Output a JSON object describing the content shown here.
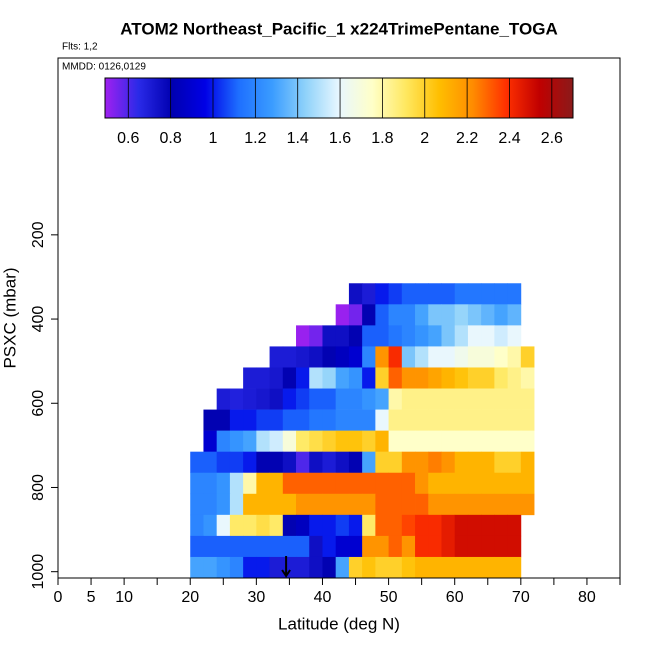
{
  "chart_data": {
    "type": "heatmap",
    "title": "ATOM2 Northeast_Pacific_1 x224TrimePentane_TOGA",
    "subtitle": "Flts: 1,2",
    "annotation": "MMDD: 0126,0129",
    "xlabel": "Latitude (deg N)",
    "ylabel": "PSXC (mbar)",
    "xlim": [
      0,
      85
    ],
    "xticks": [
      0,
      5,
      10,
      20,
      30,
      40,
      50,
      60,
      70,
      80
    ],
    "xminor_ticks": [
      15,
      25,
      35,
      45,
      55,
      65,
      75,
      85
    ],
    "ylim": [
      -220,
      1015
    ],
    "yticks": [
      200,
      400,
      600,
      800,
      1000
    ],
    "clim": [
      0.49,
      2.7
    ],
    "cticks": [
      0.6,
      0.8,
      1.0,
      1.2,
      1.4,
      1.6,
      1.8,
      2.0,
      2.2,
      2.4,
      2.6
    ],
    "colormap": [
      "#a020f0",
      "#2a2ae8",
      "#0000b0",
      "#0000e6",
      "#1e6fff",
      "#3a9cff",
      "#8fd2fa",
      "#e8f7ff",
      "#ffffc8",
      "#ffe860",
      "#ffbe00",
      "#ff8c00",
      "#ff3000",
      "#c00000",
      "#8b1a1a"
    ],
    "arrow_x": 34.5,
    "x": [
      21,
      23,
      25,
      27,
      29,
      31,
      33,
      35,
      37,
      39,
      41,
      43,
      45,
      47,
      49,
      51,
      53,
      55,
      57,
      59,
      61,
      63,
      65,
      67,
      69,
      71
    ],
    "y": [
      340,
      390,
      440,
      490,
      540,
      590,
      640,
      690,
      740,
      790,
      840,
      890,
      940,
      990
    ],
    "values": [
      [
        null,
        null,
        null,
        null,
        null,
        null,
        null,
        null,
        null,
        null,
        null,
        null,
        0.75,
        0.7,
        1.0,
        1.05,
        1.1,
        1.1,
        1.1,
        1.1,
        1.15,
        1.15,
        1.15,
        1.15,
        1.15,
        null
      ],
      [
        null,
        null,
        null,
        null,
        null,
        null,
        null,
        null,
        null,
        null,
        null,
        0.5,
        0.55,
        0.8,
        1.1,
        1.2,
        1.2,
        1.3,
        1.4,
        1.4,
        1.45,
        1.4,
        1.35,
        1.3,
        1.35,
        null
      ],
      [
        null,
        null,
        null,
        null,
        null,
        null,
        null,
        null,
        0.5,
        0.55,
        0.75,
        0.75,
        0.8,
        1.1,
        1.1,
        1.15,
        1.2,
        1.25,
        1.3,
        1.4,
        1.5,
        1.6,
        1.6,
        1.55,
        1.6,
        null
      ],
      [
        null,
        null,
        null,
        null,
        null,
        null,
        0.7,
        0.7,
        0.72,
        0.75,
        0.8,
        0.85,
        0.9,
        1.2,
        2.2,
        2.4,
        1.4,
        1.5,
        1.6,
        1.6,
        1.65,
        1.7,
        1.7,
        1.75,
        1.8,
        2.0
      ],
      [
        null,
        null,
        null,
        null,
        0.7,
        0.7,
        0.72,
        0.8,
        1.0,
        1.5,
        1.45,
        1.3,
        1.25,
        1.0,
        2.0,
        2.3,
        2.2,
        2.2,
        2.15,
        2.1,
        2.05,
        2.0,
        2.0,
        1.9,
        1.85,
        1.8
      ],
      [
        null,
        null,
        0.7,
        0.68,
        0.7,
        0.72,
        0.75,
        1.0,
        1.05,
        1.1,
        1.1,
        1.2,
        1.2,
        1.25,
        1.3,
        1.8,
        1.85,
        1.85,
        1.85,
        1.85,
        1.85,
        1.85,
        1.85,
        1.85,
        1.85,
        1.85
      ],
      [
        null,
        0.8,
        0.8,
        1.0,
        1.0,
        1.05,
        1.05,
        1.1,
        1.1,
        1.15,
        1.15,
        1.2,
        1.2,
        1.2,
        1.6,
        1.85,
        1.85,
        1.85,
        1.85,
        1.85,
        1.85,
        1.85,
        1.85,
        1.85,
        1.85,
        1.85
      ],
      [
        null,
        0.9,
        1.2,
        1.25,
        1.3,
        1.5,
        1.55,
        1.7,
        1.9,
        1.95,
        2.0,
        2.05,
        2.05,
        2.0,
        2.1,
        1.75,
        1.75,
        1.75,
        1.75,
        1.75,
        1.75,
        1.75,
        1.75,
        1.75,
        1.75,
        1.75
      ],
      [
        1.1,
        1.1,
        1.05,
        1.05,
        1.0,
        0.8,
        0.8,
        0.75,
        0.6,
        0.75,
        0.7,
        0.75,
        0.8,
        1.3,
        2.0,
        2.0,
        2.2,
        2.2,
        2.25,
        2.2,
        2.1,
        2.1,
        2.1,
        2.0,
        2.0,
        2.1
      ],
      [
        1.2,
        1.2,
        1.25,
        1.5,
        1.8,
        2.1,
        2.1,
        2.3,
        2.3,
        2.3,
        2.3,
        2.3,
        2.3,
        2.3,
        2.3,
        2.3,
        2.3,
        2.2,
        2.1,
        2.1,
        2.1,
        2.1,
        2.1,
        2.1,
        2.1,
        2.1
      ],
      [
        1.2,
        1.2,
        1.25,
        1.5,
        2.1,
        2.1,
        2.1,
        2.1,
        2.2,
        2.2,
        2.2,
        2.2,
        2.2,
        2.2,
        2.3,
        2.3,
        2.3,
        2.3,
        2.2,
        2.2,
        2.2,
        2.2,
        2.2,
        2.2,
        2.2,
        2.2
      ],
      [
        1.2,
        1.25,
        1.6,
        1.9,
        1.9,
        1.95,
        1.9,
        0.8,
        0.85,
        1.0,
        1.0,
        1.05,
        1.0,
        1.9,
        2.3,
        2.3,
        2.35,
        2.4,
        2.4,
        2.45,
        2.5,
        2.5,
        2.5,
        2.5,
        2.5,
        null
      ],
      [
        1.1,
        1.1,
        1.1,
        1.1,
        1.1,
        1.1,
        1.1,
        1.1,
        1.1,
        0.75,
        1.0,
        0.9,
        0.9,
        2.2,
        2.2,
        2.3,
        2.2,
        2.4,
        2.4,
        2.45,
        2.5,
        2.5,
        2.5,
        2.5,
        2.5,
        null
      ],
      [
        1.3,
        1.3,
        1.25,
        1.2,
        1.0,
        1.0,
        0.7,
        0.7,
        0.7,
        0.75,
        0.8,
        1.3,
        2.0,
        2.05,
        2.0,
        2.0,
        2.05,
        2.1,
        2.1,
        2.1,
        2.1,
        2.1,
        2.1,
        2.1,
        2.1,
        null
      ]
    ]
  }
}
